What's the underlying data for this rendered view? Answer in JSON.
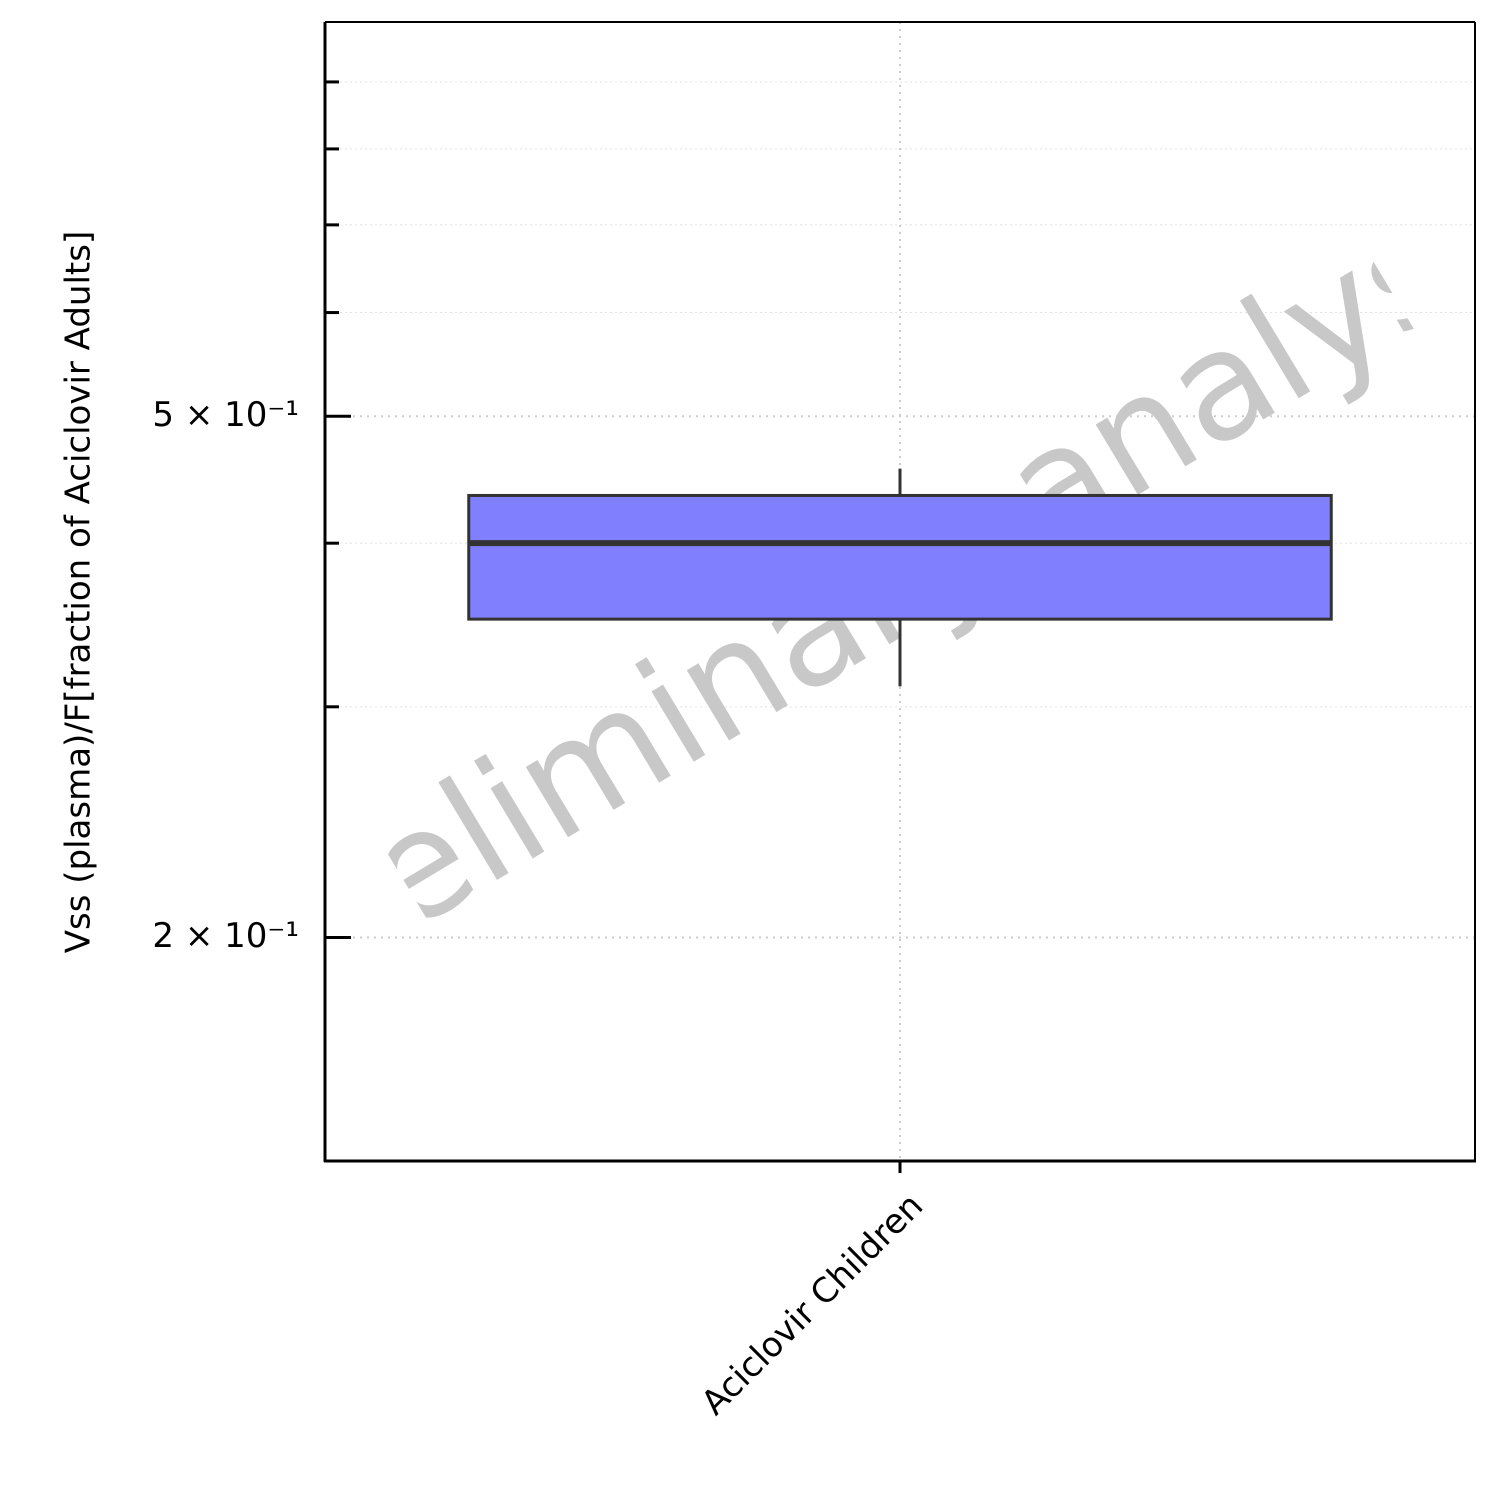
{
  "chart_data": {
    "type": "box",
    "ylabel": "Vss (plasma)/F[fraction of Aciclovir Adults]",
    "watermark": "preliminary analysis",
    "categories": [
      "Aciclovir Children"
    ],
    "boxes": [
      {
        "low": 0.311,
        "q1": 0.35,
        "median": 0.4,
        "q3": 0.435,
        "high": 0.456
      }
    ],
    "color": "#8080ff",
    "log_y": true,
    "ylim": [
      0.135,
      1.0
    ],
    "yticks": [
      {
        "value": 0.2,
        "label": "2 × 10⁻¹"
      },
      {
        "value": 0.5,
        "label": "5 × 10⁻¹"
      }
    ],
    "yminorticks": [
      0.3,
      0.4,
      0.6,
      0.7,
      0.8,
      0.9
    ],
    "grid": true
  }
}
